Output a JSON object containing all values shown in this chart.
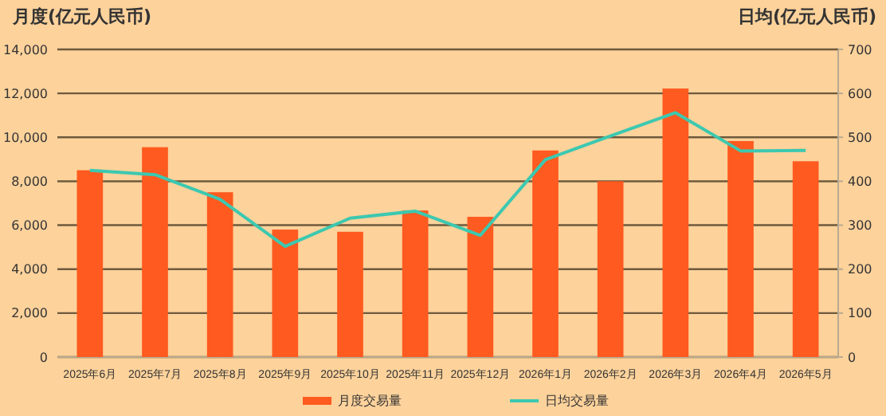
{
  "chart_data": {
    "type": "bar",
    "ylabel": "月度(亿元人民币)",
    "y2label": "日均(亿元人民币)",
    "categories": [
      "2025年6月",
      "2025年7月",
      "2025年8月",
      "2025年9月",
      "2025年10月",
      "2025年11月",
      "2025年12月",
      "2026年1月",
      "2026年2月",
      "2026年3月",
      "2026年4月",
      "2026年5月"
    ],
    "series": [
      {
        "name": "月度交易量",
        "color": "#ff5a1f",
        "values": [
          8500,
          9550,
          7500,
          5800,
          5700,
          6670,
          6380,
          9400,
          8000,
          12220,
          9830,
          8910
        ]
      },
      {
        "name": "日均交易量",
        "type": "line",
        "axis": "y2",
        "color": "#3cc8b0",
        "values": [
          425,
          415,
          359,
          252,
          316,
          332,
          277,
          449,
          503,
          556,
          469,
          470
        ]
      }
    ],
    "ylim": [
      0,
      14000
    ],
    "yticks": [
      {
        "value": 0,
        "label": "0"
      },
      {
        "value": 2000,
        "label": "2,000"
      },
      {
        "value": 4000,
        "label": "4,000"
      },
      {
        "value": 6000,
        "label": "6,000"
      },
      {
        "value": 8000,
        "label": "8,000"
      },
      {
        "value": 10000,
        "label": "10,000"
      },
      {
        "value": 12000,
        "label": "12,000"
      },
      {
        "value": 14000,
        "label": "14,000"
      }
    ],
    "y2lim": [
      0,
      700
    ],
    "y2ticks": [
      0,
      100,
      200,
      300,
      400,
      500,
      600,
      700
    ],
    "grid": "y",
    "legend": "bottom",
    "marker": "none",
    "line_style": "solid"
  }
}
